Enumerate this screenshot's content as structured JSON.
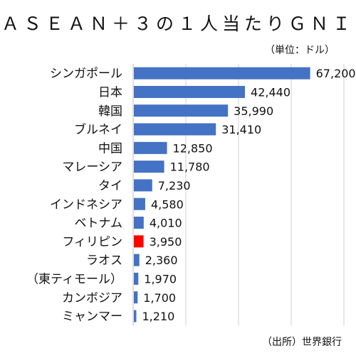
{
  "chart_data": {
    "type": "bar",
    "orientation": "horizontal",
    "title": "ＡＳＥＡＮ＋３の１人当たりＧＮＩ",
    "unit_note": "（単位：ドル）",
    "source": "（出所）世界銀行",
    "categories": [
      "シンガポール",
      "日本",
      "韓国",
      "ブルネイ",
      "中国",
      "マレーシア",
      "タイ",
      "インドネシア",
      "ベトナム",
      "フィリピン",
      "ラオス",
      "（東ティモール）",
      "カンボジア",
      "ミャンマー"
    ],
    "values": [
      67200,
      42440,
      35990,
      31410,
      12850,
      11780,
      7230,
      4580,
      4010,
      3950,
      2360,
      1970,
      1700,
      1210
    ],
    "value_labels": [
      "67,200",
      "42,440",
      "35,990",
      "31,410",
      "12,850",
      "11,780",
      "7,230",
      "4,580",
      "4,010",
      "3,950",
      "2,360",
      "1,970",
      "1,700",
      "1,210"
    ],
    "xlim": [
      0,
      80000
    ],
    "grid": "vertical",
    "bar_color": "#4472c4",
    "highlight_category": "フィリピン",
    "highlight_color": "#ff0000",
    "gridline_color": "#d0d0d0"
  }
}
